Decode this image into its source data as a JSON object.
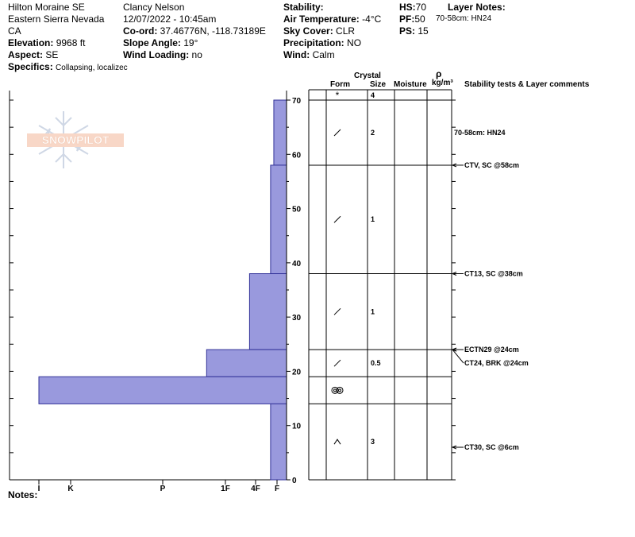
{
  "header": {
    "location": "Hilton Moraine SE",
    "range": "Eastern Sierra Nevada",
    "state": "CA",
    "elevation_label": "Elevation:",
    "elevation": "9968 ft",
    "aspect_label": "Aspect:",
    "aspect": "SE",
    "specifics_label": "Specifics:",
    "specifics": "Collapsing, localizec",
    "observer": "Clancy Nelson",
    "datetime": "12/07/2022 - 10:45am",
    "coord_label": "Co-ord:",
    "coord": "37.46776N, -118.73189E",
    "slope_label": "Slope Angle:",
    "slope": "19°",
    "wind_loading_label": "Wind Loading:",
    "wind_loading": "no",
    "stability_label": "Stability:",
    "stability": "",
    "air_temp_label": "Air Temperature:",
    "air_temp": "-4°C",
    "sky_label": "Sky Cover:",
    "sky": "CLR",
    "precip_label": "Precipitation:",
    "precip": "NO",
    "wind_label": "Wind:",
    "wind": "Calm",
    "hs_label": "HS:",
    "hs": "70",
    "pf_label": "PF:",
    "pf": "50",
    "ps_label": "PS:",
    "ps": "15",
    "layer_notes_label": "Layer Notes:",
    "layer_note": "70-58cm: HN24"
  },
  "columns": {
    "crystal": "Crystal",
    "form": "Form",
    "size": "Size",
    "moisture": "Moisture",
    "rho": "ρ",
    "density_unit": "kg/m³",
    "comments": "Stability tests & Layer comments"
  },
  "logo_text": "SNOWPILOT",
  "notes_label": "Notes:",
  "notes": "",
  "chart_data": {
    "type": "bar",
    "orientation": "horizontal",
    "ylim": [
      0,
      70
    ],
    "height_ticks": [
      0,
      10,
      20,
      30,
      40,
      50,
      60,
      70
    ],
    "hardness_scale": [
      "I",
      "K",
      "P",
      "1F",
      "4F",
      "F"
    ],
    "hardness_profile": [
      {
        "bottom": 58,
        "top": 70,
        "hardness_units": 0.15
      },
      {
        "bottom": 38,
        "top": 58,
        "hardness_units": 0.3
      },
      {
        "bottom": 24,
        "top": 38,
        "hardness_units": 1.2
      },
      {
        "bottom": 19,
        "top": 24,
        "hardness_units": 2.3
      },
      {
        "bottom": 14,
        "top": 19,
        "hardness_units": 5.0
      },
      {
        "bottom": 0,
        "top": 14,
        "hardness_units": 0.3
      }
    ],
    "layers": [
      {
        "top": 70,
        "bottom": 70,
        "form": "*",
        "size": "4"
      },
      {
        "top": 70,
        "bottom": 58,
        "form": "/",
        "size": "2"
      },
      {
        "top": 58,
        "bottom": 38,
        "form": "/",
        "size": "1"
      },
      {
        "top": 38,
        "bottom": 24,
        "form": "/",
        "size": "1"
      },
      {
        "top": 24,
        "bottom": 19,
        "form": "/",
        "size": "0.5"
      },
      {
        "top": 19,
        "bottom": 14,
        "form": "oo",
        "size": ""
      },
      {
        "top": 14,
        "bottom": 0,
        "form": "^",
        "size": "3"
      }
    ],
    "comments": [
      {
        "height": 64,
        "text": "70-58cm: HN24",
        "arrow": false
      },
      {
        "height": 58,
        "text": "CTV, SC @58cm",
        "arrow": true
      },
      {
        "height": 38,
        "text": "CT13, SC @38cm",
        "arrow": true
      },
      {
        "height": 24,
        "text": "ECTN29 @24cm",
        "arrow": true
      },
      {
        "height": 24,
        "text": "CT24, BRK @24cm",
        "arrow": true,
        "offset": 1
      },
      {
        "height": 6,
        "text": "CT30, SC @6cm",
        "arrow": true
      }
    ],
    "colors": {
      "bar_fill": "#9999dd",
      "bar_stroke": "#333399"
    }
  }
}
